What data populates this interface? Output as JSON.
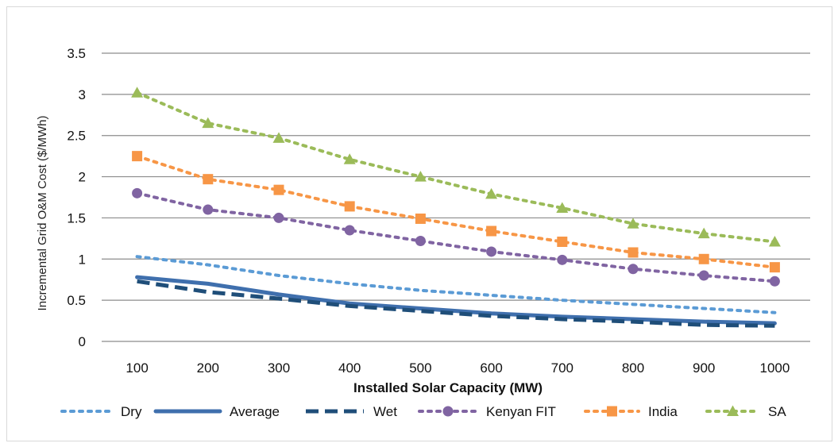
{
  "chart_data": {
    "type": "line",
    "title": "",
    "xlabel": "Installed Solar Capacity (MW)",
    "ylabel": "Incremental Grid O&M Cost ($/MWh)",
    "x": [
      100,
      200,
      300,
      400,
      500,
      600,
      700,
      800,
      900,
      1000
    ],
    "ylim": [
      0,
      3.5
    ],
    "yticks": [
      0,
      0.5,
      1,
      1.5,
      2,
      2.5,
      3,
      3.5
    ],
    "ytick_labels": [
      "0",
      "0.5",
      "1",
      "1.5",
      "2",
      "2.5",
      "3",
      "3.5"
    ],
    "grid": true,
    "legend_position": "bottom",
    "series": [
      {
        "name": "Dry",
        "style": "dotted",
        "marker": "none",
        "color": "#5b9bd5",
        "values": [
          1.03,
          0.93,
          0.8,
          0.7,
          0.62,
          0.56,
          0.5,
          0.45,
          0.4,
          0.35
        ]
      },
      {
        "name": "Average",
        "style": "solid",
        "marker": "none",
        "color": "#3f6fad",
        "values": [
          0.78,
          0.7,
          0.57,
          0.46,
          0.4,
          0.34,
          0.3,
          0.27,
          0.24,
          0.22
        ]
      },
      {
        "name": "Wet",
        "style": "dashed",
        "marker": "none",
        "color": "#1f4e79",
        "values": [
          0.73,
          0.6,
          0.52,
          0.43,
          0.37,
          0.31,
          0.27,
          0.24,
          0.2,
          0.19
        ]
      },
      {
        "name": "Kenyan FIT",
        "style": "dotted",
        "marker": "circle",
        "color": "#8064a2",
        "values": [
          1.8,
          1.6,
          1.5,
          1.35,
          1.22,
          1.09,
          0.99,
          0.88,
          0.8,
          0.73
        ]
      },
      {
        "name": "India",
        "style": "dotted",
        "marker": "square",
        "color": "#f79646",
        "values": [
          2.25,
          1.97,
          1.84,
          1.64,
          1.49,
          1.34,
          1.21,
          1.08,
          1.0,
          0.9
        ]
      },
      {
        "name": "SA",
        "style": "dotted",
        "marker": "triangle",
        "color": "#9bbb59",
        "values": [
          3.02,
          2.65,
          2.47,
          2.21,
          2.0,
          1.79,
          1.62,
          1.43,
          1.31,
          1.21
        ]
      }
    ]
  }
}
